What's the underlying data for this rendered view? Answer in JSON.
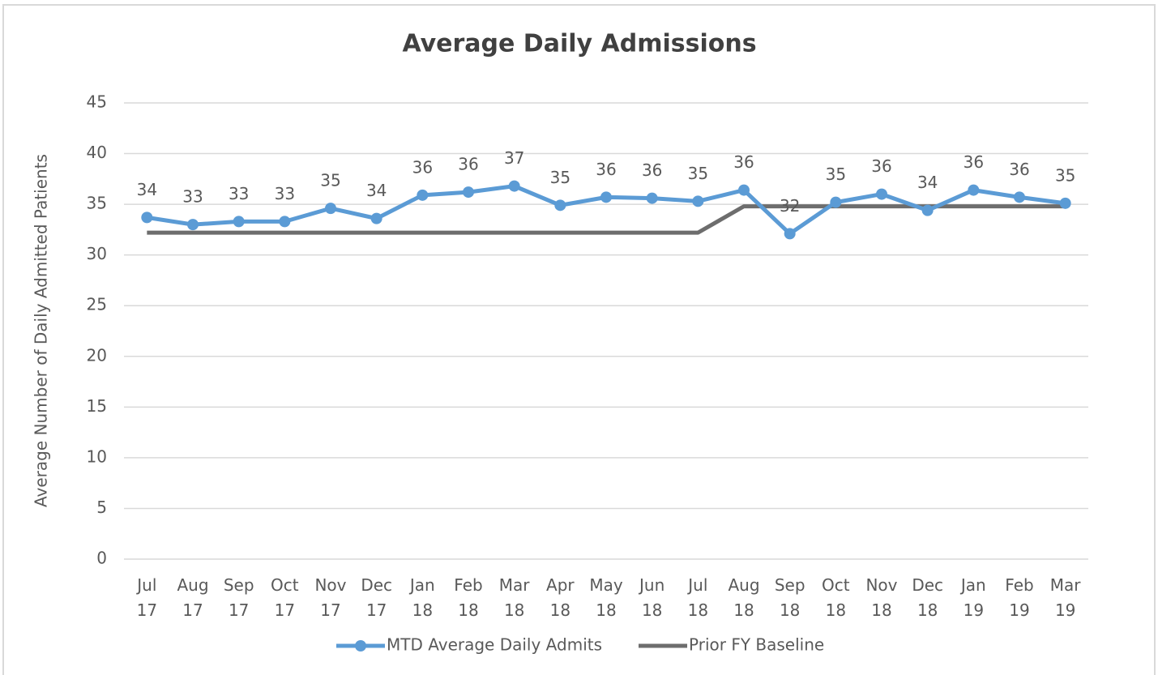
{
  "chart_data": {
    "type": "line",
    "title": "Average Daily Admissions",
    "y_label": "Average Number of Daily Admitted Patients",
    "categories": [
      "Jul 17",
      "Aug 17",
      "Sep 17",
      "Oct 17",
      "Nov 17",
      "Dec 17",
      "Jan 18",
      "Feb 18",
      "Mar 18",
      "Apr 18",
      "May 18",
      "Jun 18",
      "Jul 18",
      "Aug 18",
      "Sep 18",
      "Oct 18",
      "Nov 18",
      "Dec 18",
      "Jan 19",
      "Feb 19",
      "Mar 19"
    ],
    "series": [
      {
        "name": "MTD Average Daily Admits",
        "color": "#5b9bd5",
        "markers": true,
        "values": [
          33.7,
          33.0,
          33.3,
          33.3,
          34.6,
          33.6,
          35.9,
          36.2,
          36.8,
          34.9,
          35.7,
          35.6,
          35.3,
          36.4,
          32.1,
          35.2,
          36.0,
          34.4,
          36.4,
          35.7,
          35.1
        ],
        "value_labels": [
          "34",
          "33",
          "33",
          "33",
          "35",
          "34",
          "36",
          "36",
          "37",
          "35",
          "36",
          "36",
          "35",
          "36",
          "32",
          "35",
          "36",
          "34",
          "36",
          "36",
          "35"
        ]
      },
      {
        "name": "Prior FY Baseline",
        "color": "#6d6d6d",
        "markers": false,
        "values": [
          32.2,
          32.2,
          32.2,
          32.2,
          32.2,
          32.2,
          32.2,
          32.2,
          32.2,
          32.2,
          32.2,
          32.2,
          32.2,
          34.8,
          34.8,
          34.8,
          34.8,
          34.8,
          34.8,
          34.8,
          34.8
        ]
      }
    ],
    "ylim": [
      0,
      45
    ],
    "yticks": [
      0,
      5,
      10,
      15,
      20,
      25,
      30,
      35,
      40,
      45
    ],
    "grid": true,
    "legend": "bottom"
  }
}
